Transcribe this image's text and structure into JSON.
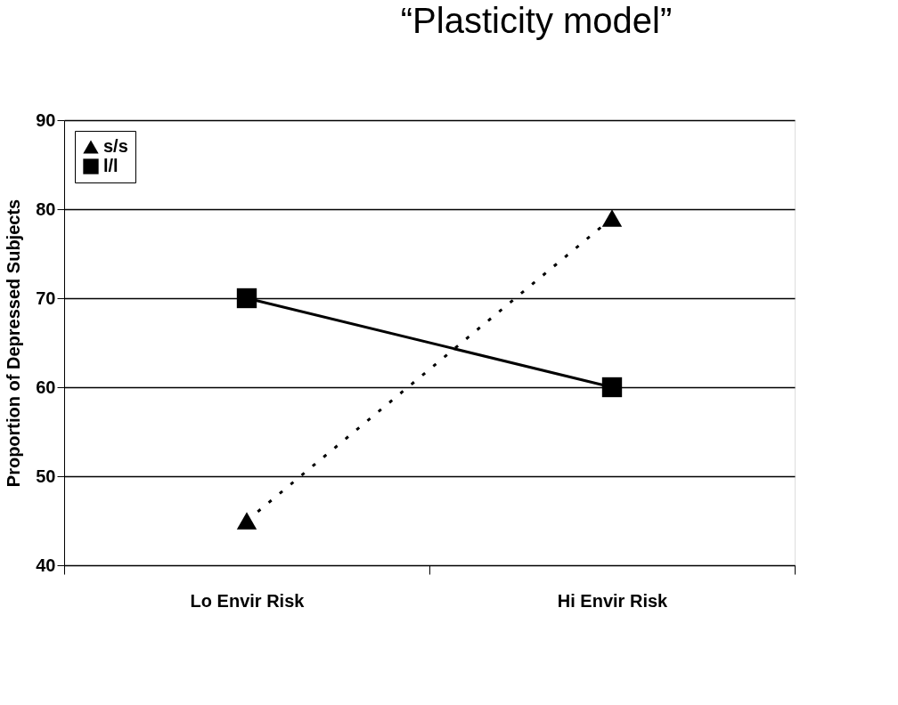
{
  "chart_data": {
    "type": "line",
    "title": "“Plasticity model”",
    "ylabel": "Proportion of Depressed Subjects",
    "categories": [
      "Lo Envir Risk",
      "Hi Envir Risk"
    ],
    "series": [
      {
        "name": "s/s",
        "color": "#000000",
        "values": [
          45,
          79
        ],
        "marker": "triangle",
        "line_style": "dotted"
      },
      {
        "name": "l/l",
        "color": "#000000",
        "values": [
          70,
          60
        ],
        "marker": "square",
        "line_style": "solid"
      }
    ],
    "ylim": [
      40,
      90
    ],
    "yticks": [
      40,
      50,
      60,
      70,
      80,
      90
    ],
    "grid": "y",
    "legend": "top left"
  }
}
